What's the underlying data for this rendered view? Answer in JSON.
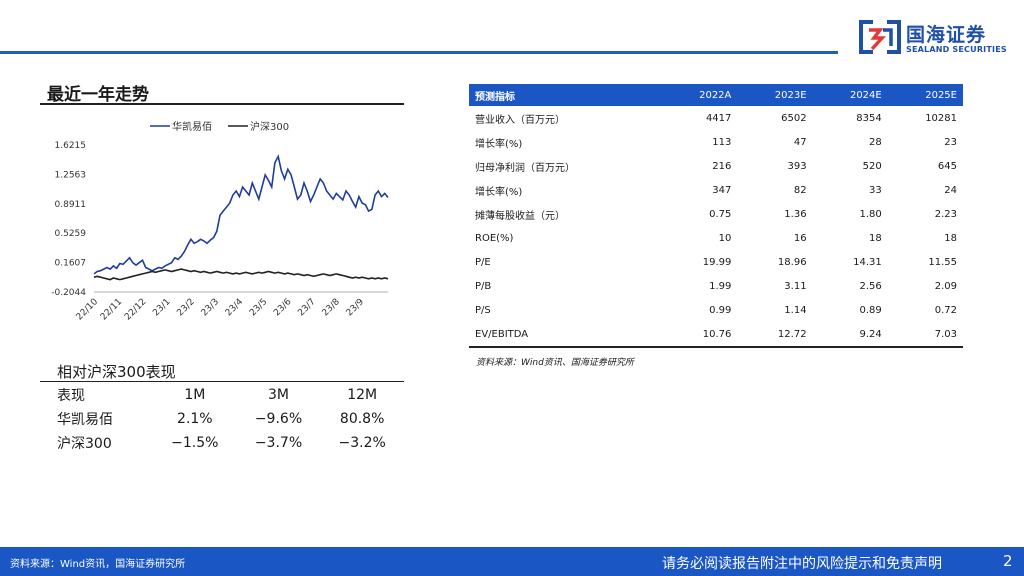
{
  "brand": {
    "name_cn": "国海证券",
    "name_en": "SEALAND SECURITIES",
    "logo_color": "#1f4fa6"
  },
  "trend": {
    "title": "最近一年走势"
  },
  "chart_data": {
    "type": "line",
    "series": [
      {
        "name": "华凯易佰",
        "color": "#1f3d99",
        "values": [
          0.02,
          0.05,
          0.06,
          0.08,
          0.1,
          0.08,
          0.12,
          0.09,
          0.15,
          0.14,
          0.18,
          0.22,
          0.16,
          0.13,
          0.16,
          0.19,
          0.1,
          0.08,
          0.06,
          0.08,
          0.1,
          0.09,
          0.12,
          0.14,
          0.16,
          0.22,
          0.2,
          0.24,
          0.3,
          0.38,
          0.45,
          0.4,
          0.42,
          0.45,
          0.43,
          0.4,
          0.44,
          0.47,
          0.55,
          0.75,
          0.8,
          0.85,
          0.9,
          1.0,
          1.05,
          0.98,
          1.1,
          1.05,
          1.0,
          1.15,
          1.05,
          0.95,
          1.1,
          1.25,
          1.18,
          1.1,
          1.4,
          1.48,
          1.3,
          1.2,
          1.32,
          1.25,
          1.1,
          0.95,
          1.0,
          1.15,
          1.05,
          0.92,
          1.0,
          1.1,
          1.2,
          1.15,
          1.05,
          1.0,
          0.95,
          1.02,
          0.98,
          0.94,
          1.05,
          1.0,
          0.92,
          0.85,
          0.98,
          0.9,
          0.88,
          0.8,
          0.82,
          1.0,
          1.05,
          0.98,
          1.02,
          0.97
        ]
      },
      {
        "name": "沪深300",
        "color": "#222222",
        "values": [
          -0.02,
          -0.01,
          -0.02,
          -0.03,
          -0.04,
          -0.05,
          -0.03,
          -0.04,
          -0.05,
          -0.04,
          -0.03,
          -0.02,
          -0.01,
          0.0,
          0.01,
          0.02,
          0.03,
          0.04,
          0.05,
          0.04,
          0.05,
          0.06,
          0.07,
          0.06,
          0.05,
          0.06,
          0.07,
          0.08,
          0.07,
          0.06,
          0.05,
          0.06,
          0.05,
          0.04,
          0.05,
          0.04,
          0.03,
          0.04,
          0.05,
          0.04,
          0.03,
          0.04,
          0.03,
          0.02,
          0.03,
          0.02,
          0.03,
          0.04,
          0.03,
          0.02,
          0.03,
          0.04,
          0.03,
          0.04,
          0.05,
          0.04,
          0.03,
          0.04,
          0.03,
          0.02,
          0.03,
          0.02,
          0.01,
          0.02,
          0.01,
          0.0,
          0.01,
          0.0,
          -0.01,
          0.0,
          0.01,
          0.02,
          0.01,
          0.0,
          0.01,
          0.02,
          0.01,
          0.0,
          -0.01,
          -0.02,
          -0.03,
          -0.02,
          -0.03,
          -0.02,
          -0.03,
          -0.04,
          -0.03,
          -0.04,
          -0.03,
          -0.04,
          -0.03,
          -0.04
        ]
      }
    ],
    "yticks": [
      "1.6215",
      "1.2563",
      "0.8911",
      "0.5259",
      "0.1607",
      "-0.2044"
    ],
    "ylim": [
      -0.2044,
      1.6215
    ],
    "xticks": [
      "22/10",
      "22/11",
      "22/12",
      "23/1",
      "23/2",
      "23/3",
      "23/4",
      "23/5",
      "23/6",
      "23/7",
      "23/8",
      "23/9"
    ],
    "legend_position": "top",
    "grid": false
  },
  "perf": {
    "title": "相对沪深300表现",
    "headers": [
      "表现",
      "1M",
      "3M",
      "12M"
    ],
    "rows": [
      [
        "华凯易佰",
        "2.1%",
        "−9.6%",
        "80.8%"
      ],
      [
        "沪深300",
        "−1.5%",
        "−3.7%",
        "−3.2%"
      ]
    ]
  },
  "forecast": {
    "headers": [
      "预测指标",
      "2022A",
      "2023E",
      "2024E",
      "2025E"
    ],
    "rows": [
      [
        "营业收入（百万元）",
        "4417",
        "6502",
        "8354",
        "10281"
      ],
      [
        "增长率(%)",
        "113",
        "47",
        "28",
        "23"
      ],
      [
        "归母净利润（百万元）",
        "216",
        "393",
        "520",
        "645"
      ],
      [
        "增长率(%)",
        "347",
        "82",
        "33",
        "24"
      ],
      [
        "摊薄每股收益（元）",
        "0.75",
        "1.36",
        "1.80",
        "2.23"
      ],
      [
        "ROE(%)",
        "10",
        "16",
        "18",
        "18"
      ],
      [
        "P/E",
        "19.99",
        "18.96",
        "14.31",
        "11.55"
      ],
      [
        "P/B",
        "1.99",
        "3.11",
        "2.56",
        "2.09"
      ],
      [
        "P/S",
        "0.99",
        "1.14",
        "0.89",
        "0.72"
      ],
      [
        "EV/EBITDA",
        "10.76",
        "12.72",
        "9.24",
        "7.03"
      ]
    ],
    "source": "资料来源：Wind资讯、国海证券研究所",
    "header_color": "#1a56c4"
  },
  "footer": {
    "source": "资料来源：Wind资讯，国海证券研究所",
    "disclaimer": "请务必阅读报告附注中的风险提示和免责声明",
    "page": "2",
    "color": "#1a56c4"
  }
}
